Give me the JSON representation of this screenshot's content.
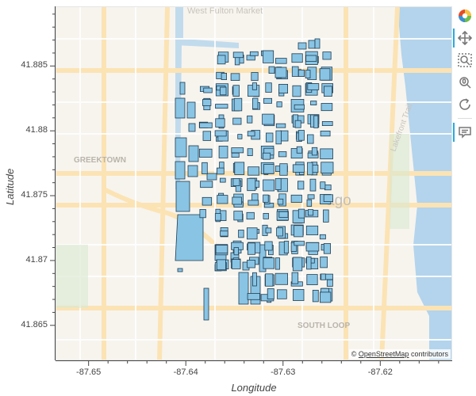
{
  "axes": {
    "xlabel": "Longitude",
    "ylabel": "Latitude",
    "xticks": [
      -87.65,
      -87.64,
      -87.63,
      -87.62
    ],
    "yticks": [
      41.865,
      41.87,
      41.875,
      41.88,
      41.885
    ],
    "xlim": [
      -87.6534,
      -87.6126
    ],
    "ylim": [
      41.8623,
      41.8896
    ]
  },
  "map_labels": {
    "greektown": "GREEKTOWN",
    "south_loop": "SOUTH LOOP",
    "chicago": "ago",
    "lakefront_trail": "Lakefront Trail",
    "west_loop": "West Fulton Market"
  },
  "attribution": {
    "prefix": "©",
    "link": "OpenStreetMap",
    "suffix": "contributors"
  },
  "colors": {
    "building_fill": "#89c4e4",
    "building_stroke": "#1f3d52",
    "water": "#b3d4ec",
    "road_major": "#fce3b4",
    "road_minor": "#ffffff"
  },
  "toolbar": {
    "tools": [
      "bokeh-logo-icon",
      "pan-icon",
      "box-zoom-icon",
      "wheel-zoom-icon",
      "reset-icon",
      "hover-icon"
    ]
  },
  "chart_data": {
    "type": "scatter",
    "description_kind": "building footprint polygons over tile map",
    "x_range": [
      -87.6534,
      -87.6126
    ],
    "y_range": [
      41.8623,
      41.8896
    ]
  }
}
